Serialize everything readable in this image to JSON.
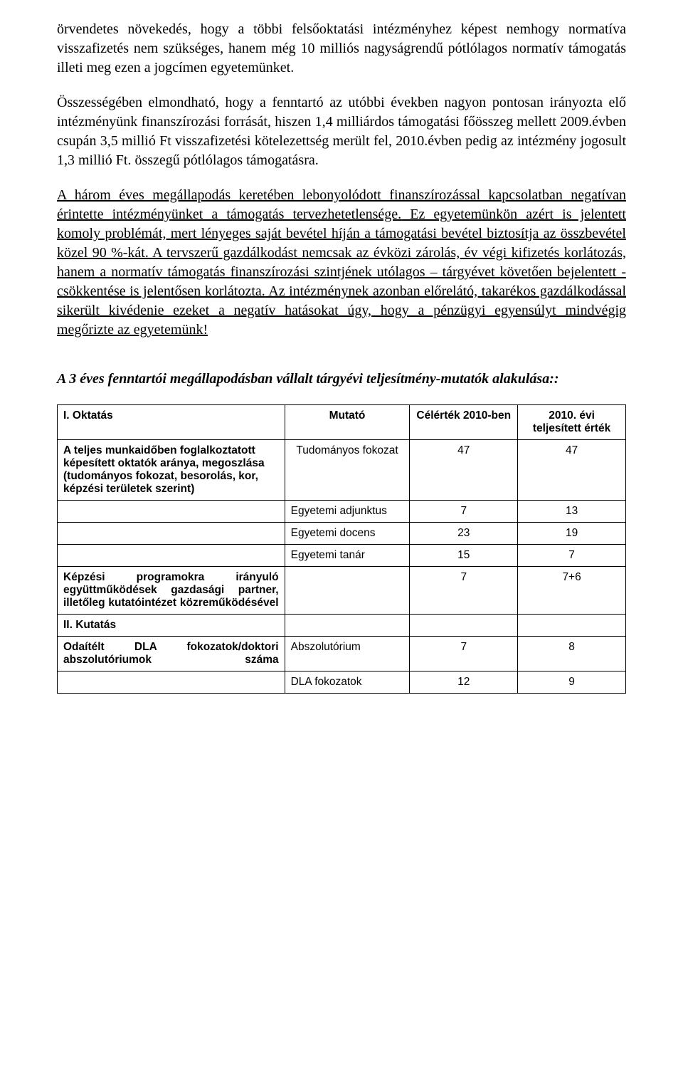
{
  "paragraphs": {
    "p1": "örvendetes növekedés, hogy a többi felsőoktatási intézményhez képest nemhogy normatíva visszafizetés nem szükséges, hanem még 10 milliós nagyságrendű pótlólagos normatív támogatás illeti meg ezen a jogcímen egyetemünket.",
    "p2": "Összességében elmondható, hogy a fenntartó az utóbbi években nagyon pontosan irányozta elő intézményünk finanszírozási forrását, hiszen 1,4 milliárdos támogatási főösszeg mellett 2009.évben csupán 3,5 millió Ft visszafizetési kötelezettség merült fel, 2010.évben pedig az intézmény jogosult 1,3 millió Ft. összegű pótlólagos támogatásra.",
    "p3_u1": "A három éves megállapodás keretében lebonyolódott finanszírozással kapcsolatban negatívan érintette intézményünket a támogatás tervezhetetlensége.",
    "p3_u2": " Ez egyetemünkön azért is jelentett komoly problémát, mert lényeges saját bevétel híján a támogatási bevétel biztosítja az összbevétel közel 90 %-kát.",
    "p3_u3": " A tervszerű gazdálkodást nemcsak az évközi zárolás, év végi kifizetés korlátozás, hanem a normatív támogatás finanszírozási szintjének utólagos – tárgyévet követően bejelentett - csökkentése is jelentősen korlátozta.",
    "p3_u4": " Az intézménynek azonban előrelátó, takarékos gazdálkodással sikerült kivédenie ezeket a negatív hatásokat úgy, hogy a pénzügyi egyensúlyt mindvégig megőrizte az egyetemünk!"
  },
  "heading": "A 3 éves fenntartói megállapodásban vállalt tárgyévi teljesítmény-mutatók alakulása::",
  "table": {
    "header": {
      "h1": "I.   Oktatás",
      "h2": "Mutató",
      "h3": "Célérték 2010-ben",
      "h4": "2010. évi teljesített érték"
    },
    "rows": [
      {
        "label": "A teljes munkaidőben foglalkoztatott képesített oktatók aránya, megoszlása (tudományos fokozat, besorolás, kor, képzési területek szerint)",
        "mutato": "Tudományos fokozat",
        "cel": "47",
        "telj": "47"
      },
      {
        "label": "",
        "mutato": "Egyetemi adjunktus",
        "cel": "7",
        "telj": "13"
      },
      {
        "label": "",
        "mutato": "Egyetemi docens",
        "cel": "23",
        "telj": "19"
      },
      {
        "label": "",
        "mutato": "Egyetemi tanár",
        "cel": "15",
        "telj": "7"
      },
      {
        "label": "Képzési programokra irányuló együttműködések gazdasági partner, illetőleg kutatóintézet közreműködésével",
        "mutato": "",
        "cel": "7",
        "telj": "7+6"
      },
      {
        "label": "II.   Kutatás",
        "mutato": "",
        "cel": "",
        "telj": ""
      },
      {
        "label": "Odaítélt DLA fokozatok/doktori abszolutóriumok száma",
        "mutato": "Abszolutórium",
        "cel": "7",
        "telj": "8"
      },
      {
        "label": "",
        "mutato": "DLA fokozatok",
        "cel": "12",
        "telj": "9"
      }
    ]
  }
}
